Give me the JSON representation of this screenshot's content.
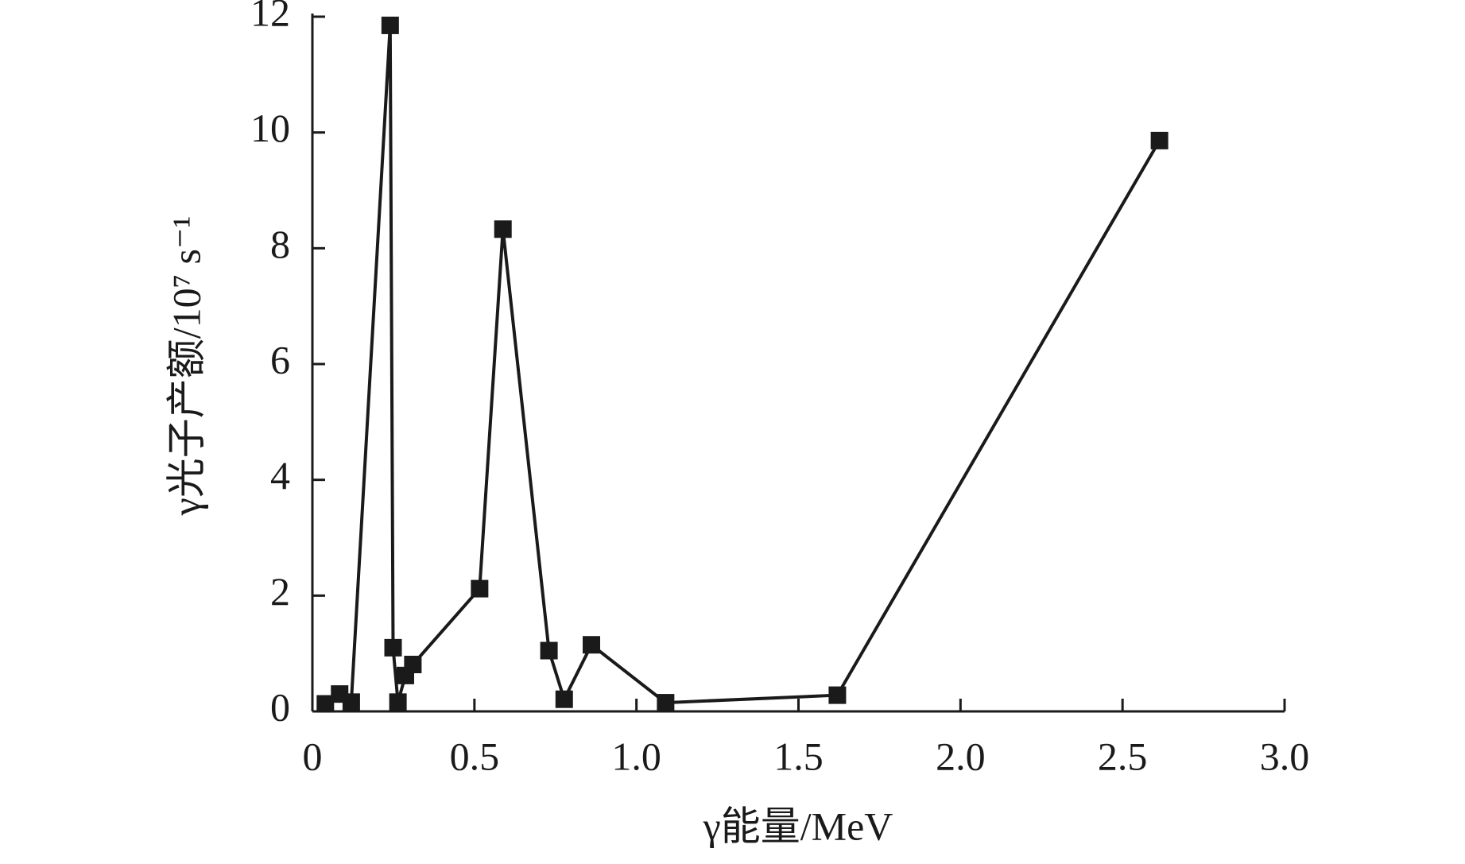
{
  "chart_data": {
    "type": "line",
    "xlabel": "γ能量/MeV",
    "ylabel": "γ光子产额/10⁷ s⁻¹",
    "x": [
      0.04,
      0.084,
      0.12,
      0.24,
      0.249,
      0.264,
      0.287,
      0.31,
      0.516,
      0.588,
      0.73,
      0.777,
      0.861,
      1.09,
      1.62,
      2.614
    ],
    "series": [
      {
        "color": "#1a1a1a",
        "values": [
          0.13,
          0.3,
          0.16,
          11.85,
          1.1,
          0.16,
          0.62,
          0.81,
          2.12,
          8.33,
          1.05,
          0.21,
          1.15,
          0.15,
          0.28,
          9.86
        ]
      }
    ],
    "xlim": [
      0,
      3
    ],
    "ylim": [
      0,
      12
    ],
    "xticks": [
      0,
      0.5,
      {
        "value": 1,
        "label": "1.0"
      },
      1.5,
      {
        "value": 2,
        "label": "2.0"
      },
      2.5,
      {
        "value": 3,
        "label": "3.0"
      }
    ],
    "yticks": [
      0,
      2,
      4,
      6,
      8,
      10,
      12
    ]
  }
}
